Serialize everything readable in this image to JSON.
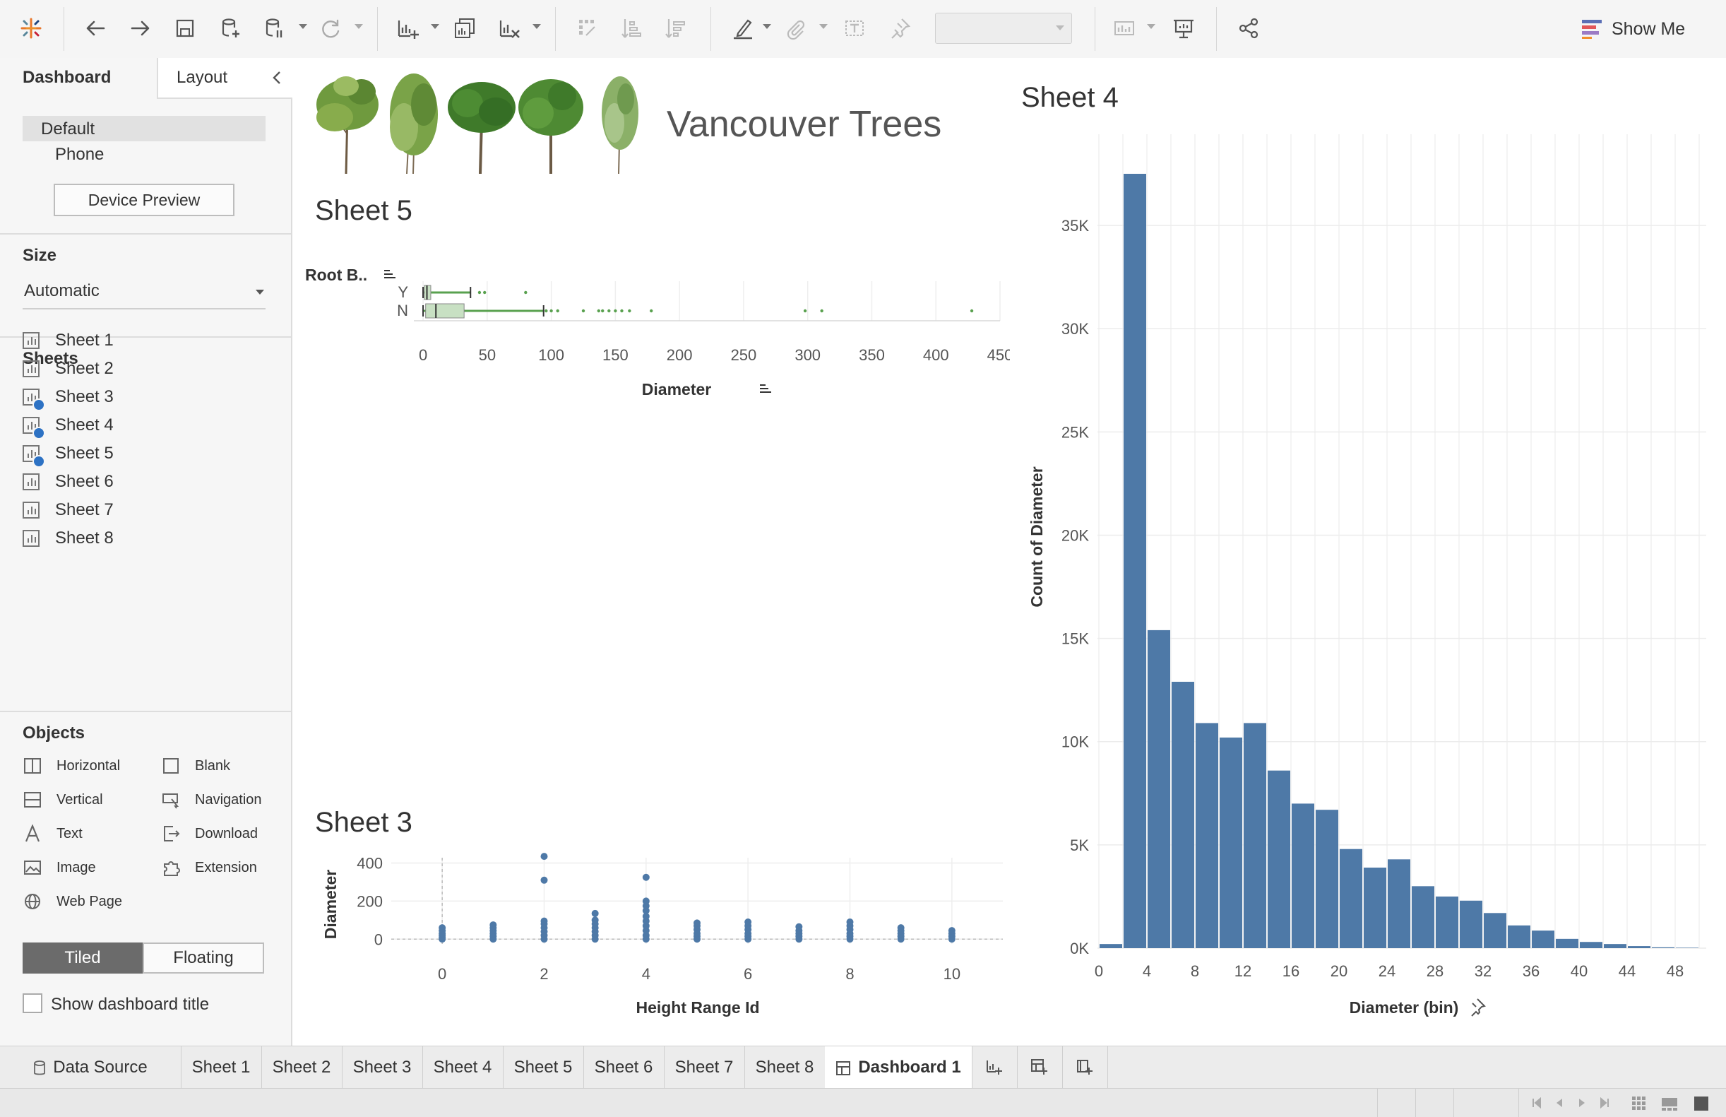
{
  "toolbar": {
    "show_me_label": "Show Me"
  },
  "left_panel": {
    "tabs": [
      {
        "label": "Dashboard"
      },
      {
        "label": "Layout"
      }
    ],
    "device_options": [
      {
        "label": "Default"
      },
      {
        "label": "Phone"
      }
    ],
    "device_preview_label": "Device Preview",
    "size_header": "Size",
    "size_value": "Automatic",
    "sheets_header": "Sheets",
    "sheets": [
      {
        "label": "Sheet 1",
        "used": false
      },
      {
        "label": "Sheet 2",
        "used": false
      },
      {
        "label": "Sheet 3",
        "used": true
      },
      {
        "label": "Sheet 4",
        "used": true
      },
      {
        "label": "Sheet 5",
        "used": true
      },
      {
        "label": "Sheet 6",
        "used": false
      },
      {
        "label": "Sheet 7",
        "used": false
      },
      {
        "label": "Sheet 8",
        "used": false
      }
    ],
    "objects_header": "Objects",
    "objects": [
      {
        "label": "Horizontal",
        "icon": "horizontal-icon"
      },
      {
        "label": "Blank",
        "icon": "blank-icon"
      },
      {
        "label": "Vertical",
        "icon": "vertical-icon"
      },
      {
        "label": "Navigation",
        "icon": "navigation-icon"
      },
      {
        "label": "Text",
        "icon": "text-icon"
      },
      {
        "label": "Download",
        "icon": "download-icon"
      },
      {
        "label": "Image",
        "icon": "image-icon"
      },
      {
        "label": "Extension",
        "icon": "extension-icon"
      },
      {
        "label": "Web Page",
        "icon": "globe-icon"
      }
    ],
    "layout_mode": [
      {
        "label": "Tiled",
        "active": true
      },
      {
        "label": "Floating",
        "active": false
      }
    ],
    "show_title_label": "Show dashboard title"
  },
  "dashboard": {
    "title": "Vancouver Trees",
    "sheet5_title": "Sheet 5",
    "sheet3_title": "Sheet 3",
    "sheet4_title": "Sheet 4"
  },
  "colors": {
    "bar_blue": "#4e79a7",
    "box_green": "#59a14f",
    "accent_blue": "#2d72c4"
  },
  "chart_data": [
    {
      "id": "sheet5",
      "type": "boxplot",
      "orientation": "horizontal",
      "row_header": "Root B..",
      "xlabel": "Diameter",
      "x_ticks": [
        0,
        50,
        100,
        150,
        200,
        250,
        300,
        350,
        400,
        450
      ],
      "xlim": [
        -5,
        450
      ],
      "series": [
        {
          "name": "Y",
          "q1": 1,
          "median": 3,
          "q3": 6,
          "whisker_low": 0,
          "whisker_high": 37,
          "outliers": [
            44,
            48,
            80
          ]
        },
        {
          "name": "N",
          "q1": 2,
          "median": 10,
          "q3": 32,
          "whisker_low": 0,
          "whisker_high": 94,
          "outliers": [
            96,
            100,
            105,
            125,
            137,
            140,
            145,
            150,
            155,
            161,
            178,
            298,
            311,
            428
          ]
        }
      ]
    },
    {
      "id": "sheet3",
      "type": "scatter",
      "xlabel": "Height Range Id",
      "ylabel": "Diameter",
      "x_ticks": [
        0,
        2,
        4,
        6,
        8,
        10
      ],
      "y_ticks": [
        0,
        200,
        400
      ],
      "xlim": [
        -1,
        11
      ],
      "ylim": [
        -25,
        480
      ],
      "points": [
        [
          0,
          0
        ],
        [
          0,
          10
        ],
        [
          0,
          20
        ],
        [
          0,
          30
        ],
        [
          0,
          45
        ],
        [
          0,
          60
        ],
        [
          1,
          0
        ],
        [
          1,
          15
        ],
        [
          1,
          30
        ],
        [
          1,
          45
        ],
        [
          1,
          60
        ],
        [
          1,
          75
        ],
        [
          2,
          0
        ],
        [
          2,
          20
        ],
        [
          2,
          40
        ],
        [
          2,
          60
        ],
        [
          2,
          80
        ],
        [
          2,
          95
        ],
        [
          2,
          310
        ],
        [
          2,
          435
        ],
        [
          3,
          0
        ],
        [
          3,
          20
        ],
        [
          3,
          40
        ],
        [
          3,
          60
        ],
        [
          3,
          80
        ],
        [
          3,
          100
        ],
        [
          3,
          135
        ],
        [
          4,
          0
        ],
        [
          4,
          20
        ],
        [
          4,
          45
        ],
        [
          4,
          70
        ],
        [
          4,
          95
        ],
        [
          4,
          120
        ],
        [
          4,
          150
        ],
        [
          4,
          175
        ],
        [
          4,
          200
        ],
        [
          4,
          325
        ],
        [
          5,
          0
        ],
        [
          5,
          15
        ],
        [
          5,
          30
        ],
        [
          5,
          50
        ],
        [
          5,
          70
        ],
        [
          5,
          85
        ],
        [
          6,
          0
        ],
        [
          6,
          15
        ],
        [
          6,
          30
        ],
        [
          6,
          50
        ],
        [
          6,
          70
        ],
        [
          6,
          90
        ],
        [
          7,
          0
        ],
        [
          7,
          15
        ],
        [
          7,
          30
        ],
        [
          7,
          45
        ],
        [
          7,
          65
        ],
        [
          8,
          0
        ],
        [
          8,
          15
        ],
        [
          8,
          30
        ],
        [
          8,
          50
        ],
        [
          8,
          70
        ],
        [
          8,
          90
        ],
        [
          9,
          0
        ],
        [
          9,
          15
        ],
        [
          9,
          30
        ],
        [
          9,
          45
        ],
        [
          9,
          60
        ],
        [
          10,
          0
        ],
        [
          10,
          15
        ],
        [
          10,
          30
        ],
        [
          10,
          45
        ]
      ]
    },
    {
      "id": "sheet4",
      "type": "bar",
      "subtype": "histogram",
      "xlabel": "Diameter (bin)",
      "ylabel": "Count of Diameter",
      "bin_size": 2,
      "x_ticks": [
        0,
        4,
        8,
        12,
        16,
        20,
        24,
        28,
        32,
        36,
        40,
        44,
        48
      ],
      "y_ticks": [
        0,
        5000,
        10000,
        15000,
        20000,
        25000,
        30000,
        35000
      ],
      "y_tick_labels": [
        "0K",
        "5K",
        "10K",
        "15K",
        "20K",
        "25K",
        "30K",
        "35K"
      ],
      "ylim": [
        0,
        37500
      ],
      "categories": [
        0,
        2,
        4,
        6,
        8,
        10,
        12,
        14,
        16,
        18,
        20,
        22,
        24,
        26,
        28,
        30,
        32,
        34,
        36,
        38,
        40,
        42,
        44,
        46,
        48
      ],
      "values": [
        200,
        37500,
        15400,
        12900,
        10900,
        10200,
        10900,
        8600,
        7000,
        6700,
        4800,
        3900,
        4300,
        3000,
        2500,
        2300,
        1700,
        1100,
        850,
        450,
        300,
        200,
        100,
        40,
        20
      ]
    }
  ],
  "bottom_tabs": [
    {
      "label": "Data Source",
      "icon": "database-icon"
    },
    {
      "label": "Sheet 1"
    },
    {
      "label": "Sheet 2"
    },
    {
      "label": "Sheet 3"
    },
    {
      "label": "Sheet 4"
    },
    {
      "label": "Sheet 5"
    },
    {
      "label": "Sheet 6"
    },
    {
      "label": "Sheet 7"
    },
    {
      "label": "Sheet 8"
    },
    {
      "label": "Dashboard 1",
      "active": true
    }
  ]
}
